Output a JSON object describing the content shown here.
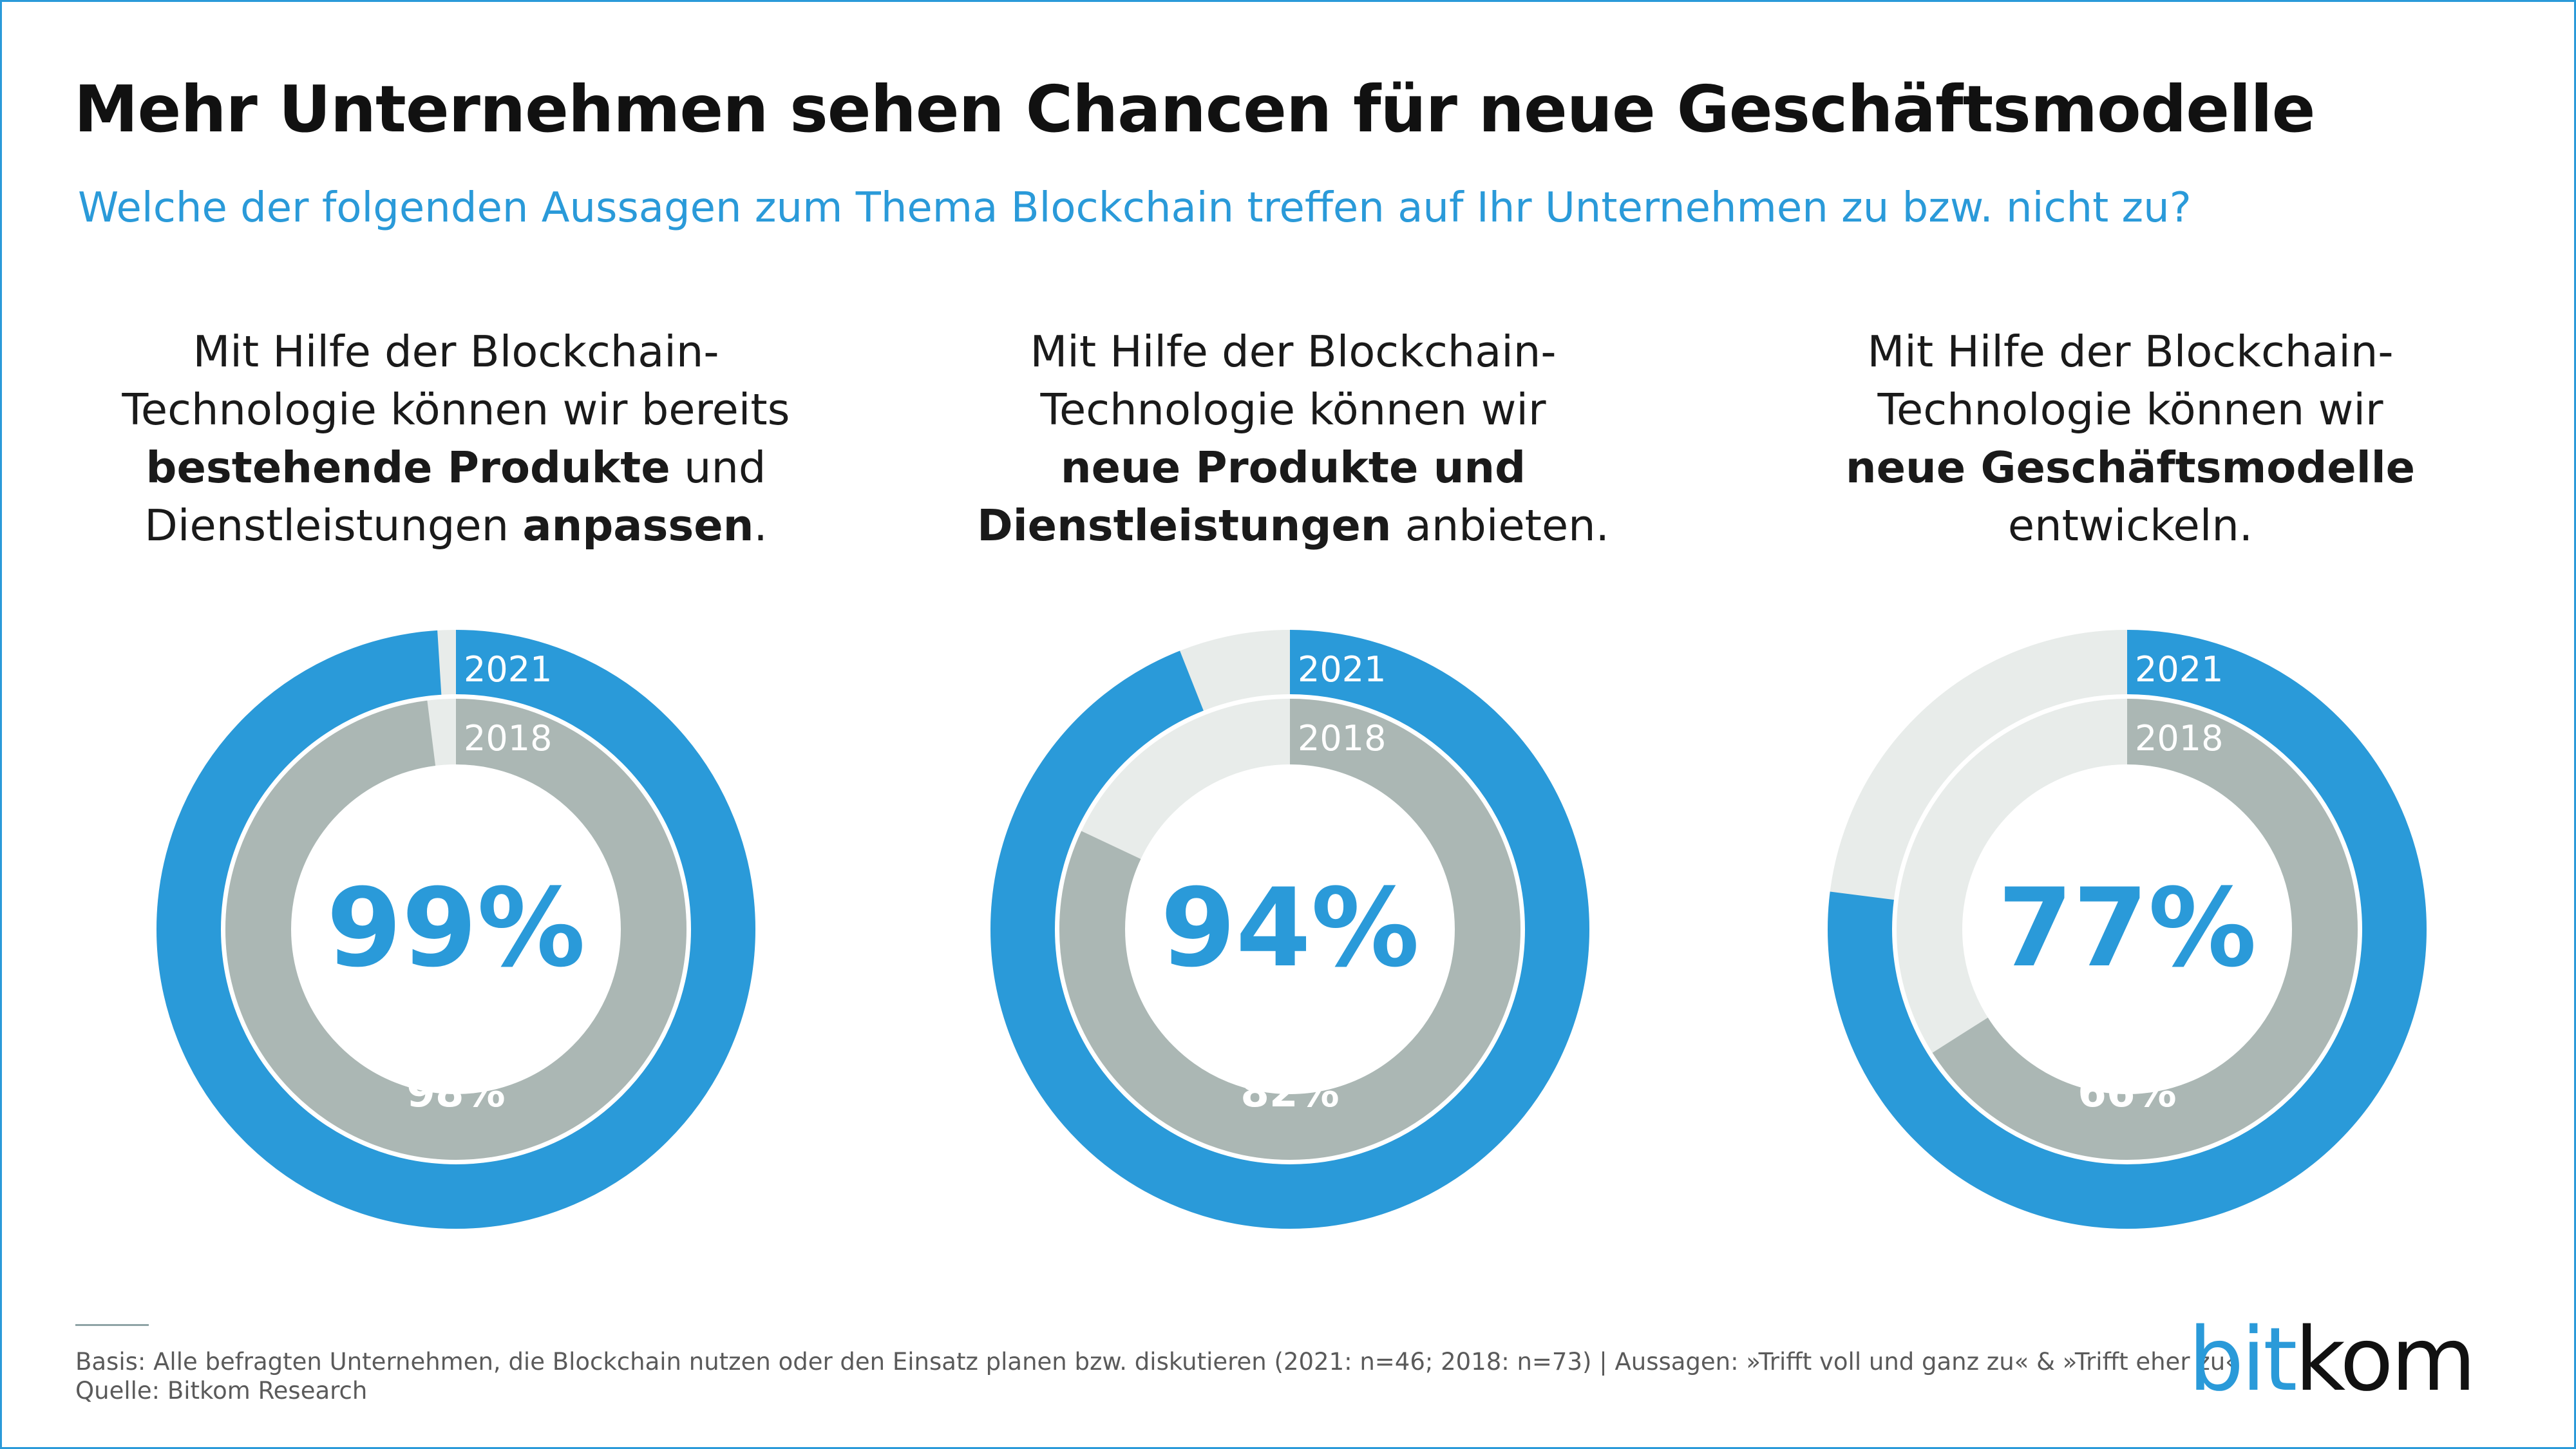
{
  "title": "Mehr Unternehmen sehen Chancen für neue Geschäftsmodelle",
  "subtitle": "Welche der folgenden Aussagen zum Thema Blockchain treffen auf Ihr Unternehmen zu bzw. nicht zu?",
  "statements": [
    {
      "line1": "Mit Hilfe der Blockchain-",
      "line2": "Technologie können wir bereits",
      "line3_bold": "bestehende Produkte",
      "line3_rest": " und",
      "line4_plain": "Dienstleistungen ",
      "line4_bold": "anpassen",
      "line4_end": "."
    },
    {
      "line1": "Mit Hilfe der Blockchain-",
      "line2": "Technologie können wir",
      "line3_bold": "neue Produkte und",
      "line4_bold": "Dienstleistungen",
      "line4_rest": " anbieten."
    },
    {
      "line1": "Mit Hilfe der Blockchain-",
      "line2": "Technologie können wir",
      "line3_bold": "neue Geschäftsmodelle",
      "line4": "entwickeln."
    }
  ],
  "chart_data": [
    {
      "type": "pie",
      "subtype": "nested-donut",
      "unit": "%",
      "series": [
        {
          "name": "2021",
          "value": 99,
          "label": "99%"
        },
        {
          "name": "2018",
          "value": 98,
          "label": "98%"
        }
      ]
    },
    {
      "type": "pie",
      "subtype": "nested-donut",
      "unit": "%",
      "series": [
        {
          "name": "2021",
          "value": 94,
          "label": "94%"
        },
        {
          "name": "2018",
          "value": 82,
          "label": "82%"
        }
      ]
    },
    {
      "type": "pie",
      "subtype": "nested-donut",
      "unit": "%",
      "series": [
        {
          "name": "2021",
          "value": 77,
          "label": "77%"
        },
        {
          "name": "2018",
          "value": 66,
          "label": "66%"
        }
      ]
    }
  ],
  "colors": {
    "accent": "#2a9ad9",
    "inner_fill": "#abb7b4",
    "remainder": "#e8ecea",
    "title": "#111111",
    "note": "#5a5a5a"
  },
  "footer": {
    "basis": "Basis: Alle befragten Unternehmen, die Blockchain nutzen oder den Einsatz planen bzw. diskutieren (2021: n=46; 2018: n=73) | Aussagen: »Trifft voll und ganz zu« & »Trifft eher zu«",
    "source": "Quelle: Bitkom Research"
  },
  "logo": {
    "part1": "bit",
    "part2": "kom"
  }
}
